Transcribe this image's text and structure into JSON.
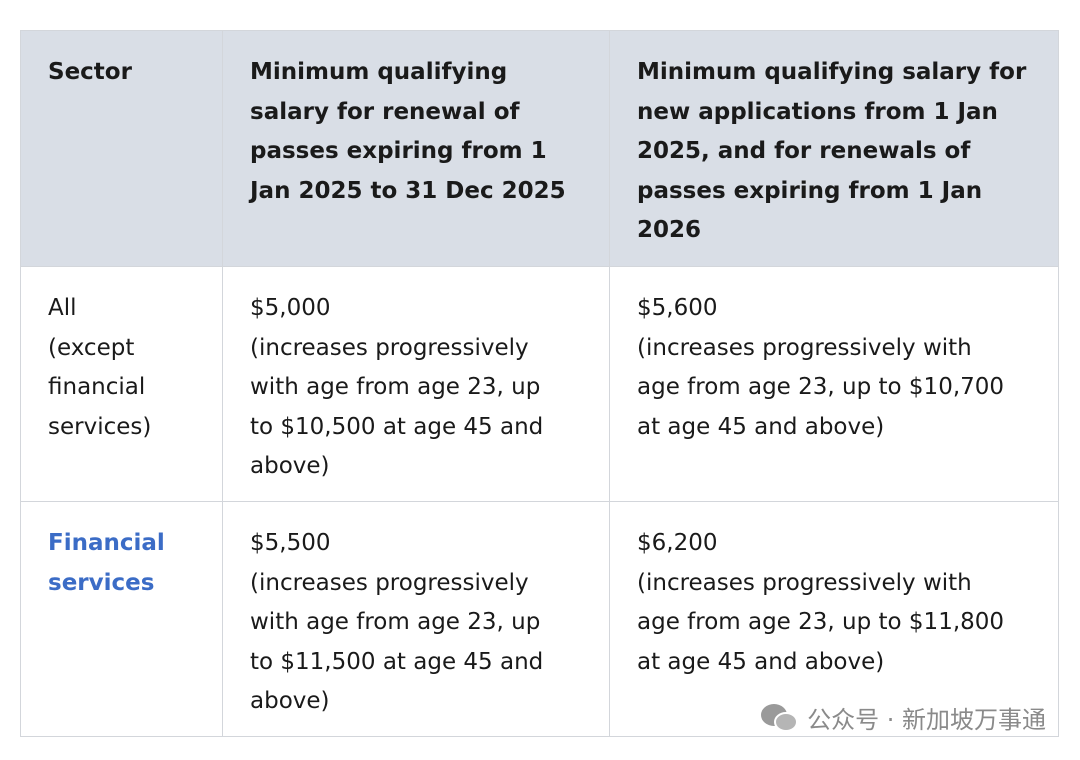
{
  "table": {
    "header": [
      [
        "Sector"
      ],
      [
        "Minimum qualifying",
        "salary for renewal of",
        "passes expiring from 1",
        "Jan 2025 to 31 Dec 2025"
      ],
      [
        "Minimum qualifying salary for",
        "new applications from 1 Jan",
        "2025, and for renewals of",
        "passes expiring from 1 Jan",
        "2026"
      ]
    ],
    "rows": [
      {
        "cells": [
          [
            "All",
            "(except",
            "financial",
            "services)"
          ],
          [
            "$5,000",
            "(increases progressively",
            "with age from age 23, up",
            "to $10,500 at age 45 and",
            "above)"
          ],
          [
            "$5,600",
            "(increases progressively with",
            "age from age 23, up to $10,700",
            "at age 45 and above)"
          ]
        ]
      },
      {
        "cells": [
          [
            "Financial",
            "services"
          ],
          [
            "$5,500",
            "(increases progressively",
            "with age from age 23, up",
            "to $11,500 at age 45 and",
            "above)"
          ],
          [
            "$6,200",
            "(increases progressively with",
            "age from age 23, up to $11,800",
            "at age 45 and above)"
          ]
        ]
      }
    ]
  },
  "watermark": "公众号 · 新加坡万事通"
}
